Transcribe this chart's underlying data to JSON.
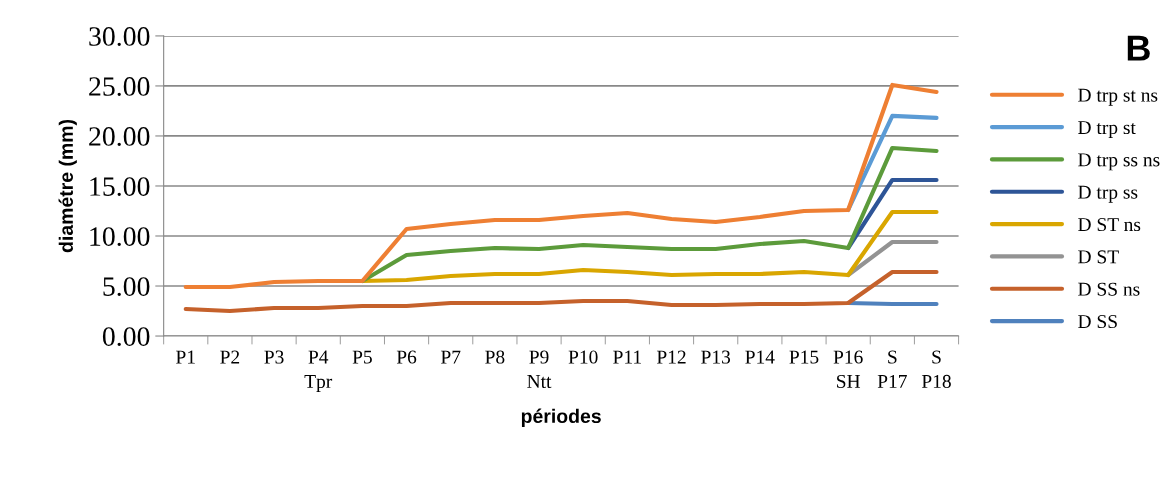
{
  "chart_data": {
    "type": "line",
    "xlabel": "périodes",
    "ylabel": "diamétre (mm)",
    "annotations": [
      "B"
    ],
    "categories": [
      "P1",
      "P2",
      "P3",
      "P4\nTpr",
      "P5",
      "P6",
      "P7",
      "P8",
      "P9\nNtt",
      "P10",
      "P11",
      "P12",
      "P13",
      "P14",
      "P15",
      "P16\nSH",
      "S\nP17",
      "S\nP18"
    ],
    "series": [
      {
        "name": "D trp st ns",
        "color": "#ee7f33",
        "values": [
          4.9,
          4.9,
          5.4,
          5.5,
          5.5,
          10.7,
          11.2,
          11.6,
          11.6,
          12.0,
          12.3,
          11.7,
          11.4,
          11.9,
          12.5,
          12.6,
          25.1,
          24.4
        ]
      },
      {
        "name": "D trp st",
        "color": "#5b9bd5",
        "values": [
          null,
          null,
          null,
          null,
          null,
          null,
          null,
          null,
          null,
          null,
          null,
          null,
          null,
          null,
          null,
          12.6,
          22.0,
          21.8
        ]
      },
      {
        "name": "D trp ss ns",
        "color": "#5c9b3b",
        "values": [
          null,
          null,
          null,
          null,
          5.5,
          8.1,
          8.5,
          8.8,
          8.7,
          9.1,
          8.9,
          8.7,
          8.7,
          9.2,
          9.5,
          8.8,
          18.8,
          18.5
        ]
      },
      {
        "name": "D trp ss",
        "color": "#2e5597",
        "values": [
          null,
          null,
          null,
          null,
          null,
          null,
          null,
          null,
          null,
          null,
          null,
          null,
          null,
          null,
          null,
          8.8,
          15.6,
          15.6
        ]
      },
      {
        "name": "D ST ns",
        "color": "#d9a600",
        "values": [
          null,
          null,
          null,
          null,
          5.5,
          5.6,
          6.0,
          6.2,
          6.2,
          6.6,
          6.4,
          6.1,
          6.2,
          6.2,
          6.4,
          6.1,
          12.4,
          12.4
        ]
      },
      {
        "name": "D ST",
        "color": "#939393",
        "values": [
          null,
          null,
          null,
          null,
          null,
          null,
          null,
          null,
          null,
          null,
          null,
          null,
          null,
          null,
          null,
          6.1,
          9.4,
          9.4
        ]
      },
      {
        "name": "D SS ns",
        "color": "#c5612b",
        "values": [
          2.7,
          2.5,
          2.8,
          2.8,
          3.0,
          3.0,
          3.3,
          3.3,
          3.3,
          3.5,
          3.5,
          3.1,
          3.1,
          3.2,
          3.2,
          3.3,
          6.4,
          6.4
        ]
      },
      {
        "name": "D SS",
        "color": "#4f81bd",
        "values": [
          null,
          null,
          null,
          null,
          null,
          null,
          null,
          null,
          null,
          null,
          null,
          null,
          null,
          null,
          null,
          3.3,
          3.2,
          3.2
        ]
      }
    ],
    "ylim": [
      0,
      30
    ],
    "yticks": [
      {
        "value": 0,
        "label": "0.00"
      },
      {
        "value": 5,
        "label": "5.00"
      },
      {
        "value": 10,
        "label": "10.00"
      },
      {
        "value": 15,
        "label": "15.00"
      },
      {
        "value": 20,
        "label": "20.00"
      },
      {
        "value": 25,
        "label": "25.00"
      },
      {
        "value": 30,
        "label": "30.00"
      }
    ],
    "grid": "y",
    "legend": "right",
    "marker": "none",
    "line_style": "solid"
  }
}
